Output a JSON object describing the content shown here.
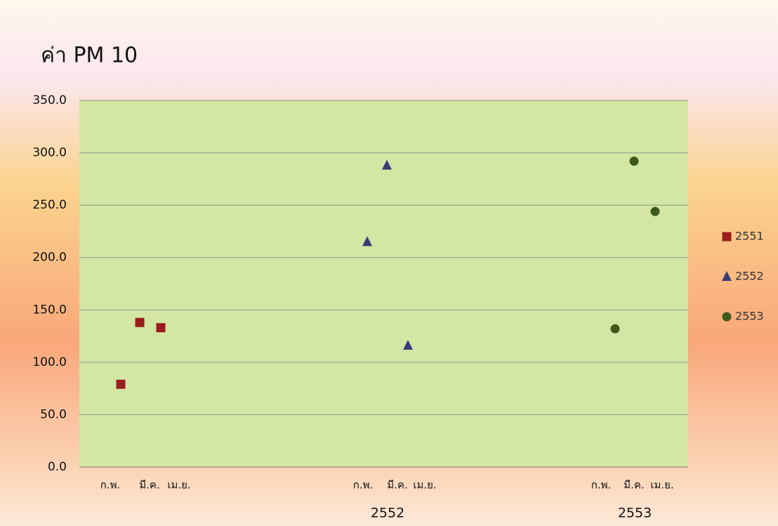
{
  "chart_data": {
    "type": "scatter",
    "title": "ค่า PM 10",
    "categories": [
      "ก.พ.",
      "มี.ค.",
      "เม.ย.",
      "ก.พ.",
      "มี.ค.",
      "เม.ย.",
      "ก.พ.",
      "มี.ค.",
      "เม.ย."
    ],
    "group_labels": [
      null,
      "2552",
      "2553"
    ],
    "series": [
      {
        "name": "2551",
        "color": "#9b1c1c",
        "marker": "square",
        "values": [
          79,
          138,
          133,
          null,
          null,
          null,
          null,
          null,
          null
        ]
      },
      {
        "name": "2552",
        "color": "#3b3a78",
        "marker": "triangle",
        "values": [
          null,
          null,
          null,
          215,
          288,
          116,
          null,
          null,
          null
        ]
      },
      {
        "name": "2553",
        "color": "#3d5a1c",
        "marker": "circle",
        "values": [
          null,
          null,
          null,
          null,
          null,
          null,
          132,
          292,
          244
        ]
      }
    ],
    "ylim": [
      0,
      350
    ],
    "yticks": [
      {
        "value": 0,
        "label": "0.0"
      },
      {
        "value": 50,
        "label": "50.0"
      },
      {
        "value": 100,
        "label": "100.0"
      },
      {
        "value": 150,
        "label": "150.0"
      },
      {
        "value": 200,
        "label": "200.0"
      },
      {
        "value": 250,
        "label": "250.0"
      },
      {
        "value": 300,
        "label": "300.0"
      },
      {
        "value": 350,
        "label": "350.0"
      }
    ],
    "grid": true,
    "legend": "right"
  }
}
